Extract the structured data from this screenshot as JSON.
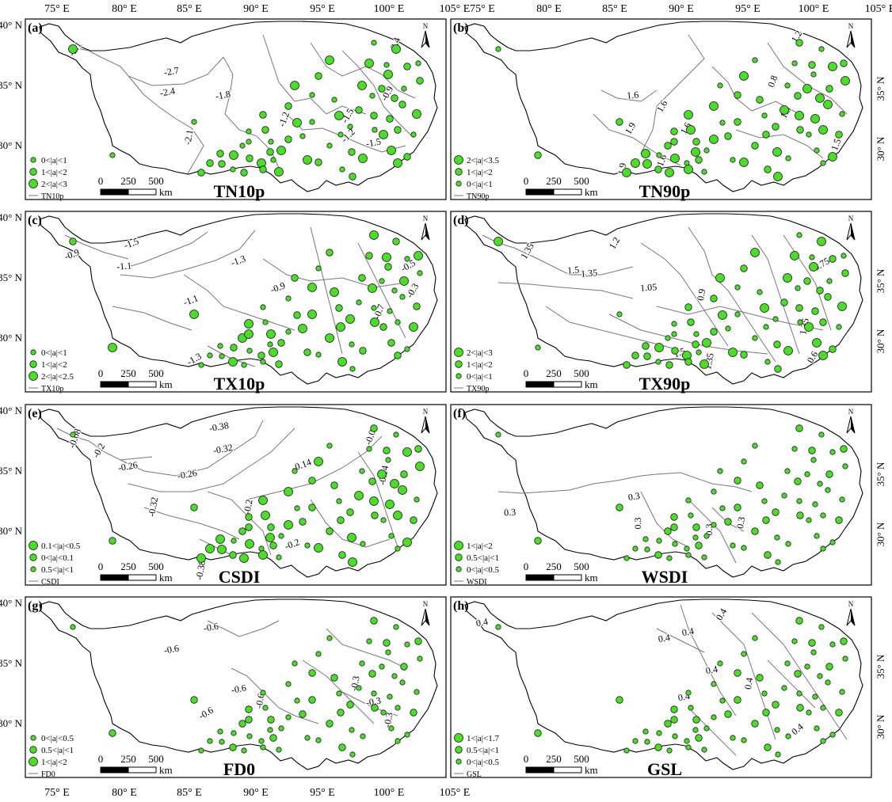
{
  "figure": {
    "top_lon_ticks": [
      "75° E",
      "80° E",
      "85° E",
      "90° E",
      "95° E",
      "100° E",
      "105° E"
    ],
    "bottom_lon_ticks": [
      "75° E",
      "80° E",
      "85° E",
      "90° E",
      "95° E",
      "100° E",
      "105° E"
    ],
    "lat_ticks_left": [
      "40° N",
      "35° N",
      "30° N"
    ],
    "lat_ticks_right": [
      "35° N",
      "30° N"
    ],
    "scalebar": {
      "labels": [
        "0",
        "250",
        "500"
      ],
      "unit": "km"
    },
    "north_label": "N",
    "dot_color": "#4cdc2a",
    "contour_color": "#777777"
  },
  "panels": [
    {
      "tag": "(a)",
      "title": "TN10p",
      "legend": [
        "0<|a|<1",
        "1<|a|<2",
        "2<|a|<3"
      ],
      "legend_line": "TN10p",
      "contour_labels": [
        "-2.1",
        "-2.7",
        "-2.4",
        "-2.1",
        "-1.8",
        "-1.2",
        "-1.5",
        "-0.9",
        "-2.4",
        "-1.5",
        "-1.2"
      ]
    },
    {
      "tag": "(b)",
      "title": "TN90p",
      "legend": [
        "2<|a|<3.5",
        "1<|a|<2",
        "0<|a|<1"
      ],
      "legend_line": "TN90p",
      "contour_labels": [
        "1.2",
        "1.6",
        "1.6",
        "1.9",
        "1.6",
        "0.8",
        "1.3",
        "1.6",
        "1.9",
        "1.5"
      ]
    },
    {
      "tag": "(c)",
      "title": "TX10p",
      "legend": [
        "0<|a|<1",
        "1<|a|<2",
        "2<|a|<2.5"
      ],
      "legend_line": "TX10p",
      "contour_labels": [
        "-0.9",
        "-1.5",
        "-1.3",
        "-1.1",
        "-0.9",
        "-1.1",
        "-1.3",
        "-0.5",
        "-0.7",
        "-0.3"
      ]
    },
    {
      "tag": "(d)",
      "title": "TX90p",
      "legend": [
        "2<|a|<3",
        "1<|a|<2",
        "0<|a|<1"
      ],
      "legend_line": "TX90p",
      "contour_labels": [
        "1.35",
        "1.5",
        "1.35",
        "1.2",
        "1.05",
        "0.9",
        "0.75",
        "1.35",
        "1.5",
        "1.35",
        "0.6"
      ]
    },
    {
      "tag": "(e)",
      "title": "CSDI",
      "legend": [
        "0.1<|a|<0.5",
        "0<|a|<0.1",
        "0.5<|a|<1"
      ],
      "legend_line": "CSDI",
      "contour_labels": [
        "-0.08",
        "-0.2",
        "-0.38",
        "-0.32",
        "-0.26",
        "-0.26",
        "-0.14",
        "-0.32",
        "-0.2",
        "-0.2",
        "-0.08",
        "-0.14",
        "-0.38"
      ]
    },
    {
      "tag": "(f)",
      "title": "WSDI",
      "legend": [
        "1<|a|<2",
        "0.5<|a|<1",
        "0<|a|<0.5"
      ],
      "legend_line": "WSDI",
      "contour_labels": [
        "0.3",
        "0.3",
        "0.3",
        "0.3",
        "0.3"
      ]
    },
    {
      "tag": "(g)",
      "title": "FD0",
      "legend": [
        "0<|a|<0.5",
        "0.5<|a|<1",
        "1<|a|<2"
      ],
      "legend_line": "FD0",
      "contour_labels": [
        "-0.6",
        "-0.6",
        "-0.6",
        "-0.6",
        "-0.3",
        "-0.3",
        "-0.3",
        "-0.6"
      ]
    },
    {
      "tag": "(h)",
      "title": "GSL",
      "legend": [
        "1<|a|<1.7",
        "0.5<|a|<1",
        "0<|a|<0.5"
      ],
      "legend_line": "GSL",
      "contour_labels": [
        "0.4",
        "0.4",
        "0.4",
        "0.4",
        "0.4",
        "0.4",
        "0.4",
        "0.4"
      ]
    }
  ]
}
